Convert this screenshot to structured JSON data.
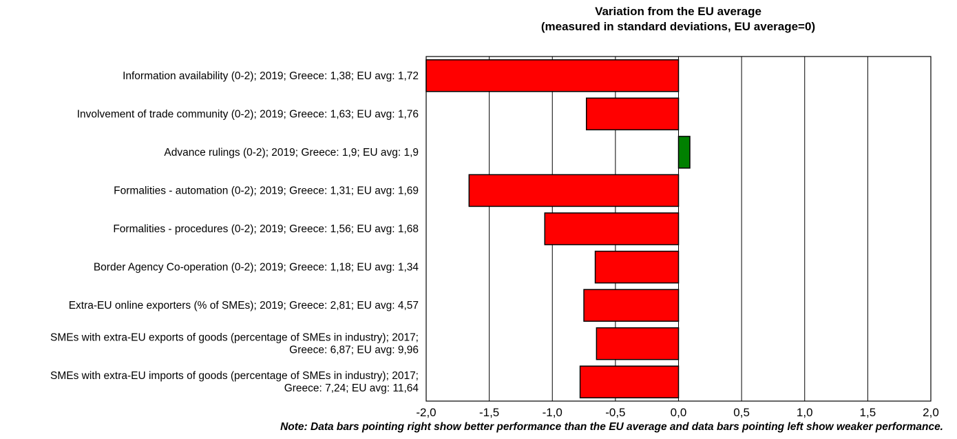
{
  "chart_data": {
    "type": "bar",
    "orientation": "horizontal",
    "title": "Variation from the EU average",
    "subtitle": "(measured in standard deviations, EU average=0)",
    "xlim": [
      -2.0,
      2.0
    ],
    "xticks": [
      -2.0,
      -1.5,
      -1.0,
      -0.5,
      0.0,
      0.5,
      1.0,
      1.5,
      2.0
    ],
    "xtick_labels": [
      "-2,0",
      "-1,5",
      "-1,0",
      "-0,5",
      "0,0",
      "0,5",
      "1,0",
      "1,5",
      "2,0"
    ],
    "grid": "vertical",
    "categories": [
      [
        "Information availability (0-2); 2019; Greece: 1,38; EU avg: 1,72"
      ],
      [
        "Involvement of trade community (0-2); 2019; Greece: 1,63; EU avg: 1,76"
      ],
      [
        "Advance rulings (0-2); 2019; Greece: 1,9; EU avg: 1,9"
      ],
      [
        "Formalities - automation (0-2); 2019; Greece: 1,31; EU avg: 1,69"
      ],
      [
        "Formalities - procedures (0-2); 2019; Greece: 1,56; EU avg: 1,68"
      ],
      [
        "Border Agency Co-operation (0-2); 2019; Greece: 1,18; EU avg: 1,34"
      ],
      [
        "Extra-EU online exporters (% of SMEs); 2019; Greece: 2,81; EU avg: 4,57"
      ],
      [
        "SMEs with extra-EU exports of goods (percentage of SMEs in industry); 2017;",
        "Greece: 6,87; EU avg: 9,96"
      ],
      [
        "SMEs with extra-EU imports of goods (percentage of SMEs in industry); 2017;",
        "Greece: 7,24; EU avg: 11,64"
      ]
    ],
    "values": [
      -2.0,
      -0.73,
      0.09,
      -1.66,
      -1.06,
      -0.66,
      -0.75,
      -0.65,
      -0.78
    ],
    "colors": {
      "negative": "#ff0000",
      "positive": "#008000",
      "edge": "#000000"
    }
  },
  "note": "Note: Data bars pointing right show better performance than the EU average and data bars pointing left show weaker performance."
}
